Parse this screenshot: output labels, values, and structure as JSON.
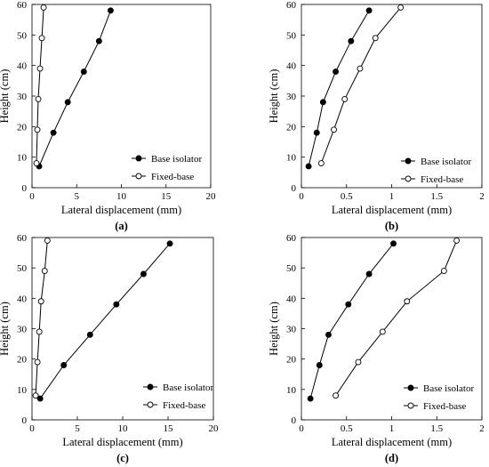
{
  "figure": {
    "panels": [
      "(a)",
      "(b)",
      "(c)",
      "(d)"
    ]
  },
  "colors": {
    "axis": "#000000",
    "series_filled": "#000000",
    "series_open_fill": "#ffffff"
  },
  "chart_data": [
    {
      "type": "line",
      "panel_label": "(a)",
      "xlabel": "Lateral displacement (mm)",
      "ylabel": "Height (cm)",
      "xlim": [
        0,
        20
      ],
      "ylim": [
        0,
        60
      ],
      "xticks": [
        "0",
        "5",
        "10",
        "15",
        "20"
      ],
      "yticks": [
        "0",
        "10",
        "20",
        "30",
        "40",
        "50",
        "60"
      ],
      "grid": false,
      "legend_position": "bottom-right",
      "series": [
        {
          "name": "Base isolator",
          "marker": "filled-circle",
          "x": [
            0.8,
            2.4,
            4.0,
            5.8,
            7.5,
            8.8
          ],
          "y": [
            7,
            18,
            28,
            38,
            48,
            58
          ]
        },
        {
          "name": "Fixed-base",
          "marker": "open-circle",
          "x": [
            0.5,
            0.6,
            0.7,
            0.9,
            1.1,
            1.3
          ],
          "y": [
            8,
            19,
            29,
            39,
            49,
            59
          ]
        }
      ]
    },
    {
      "type": "line",
      "panel_label": "(b)",
      "xlabel": "Lateral displacement (mm)",
      "ylabel": "Height (cm)",
      "xlim": [
        0,
        2
      ],
      "ylim": [
        0,
        60
      ],
      "xticks": [
        "0",
        "0.5",
        "1",
        "1.5",
        "2"
      ],
      "yticks": [
        "0",
        "10",
        "20",
        "30",
        "40",
        "50",
        "60"
      ],
      "grid": false,
      "legend_position": "bottom-right",
      "series": [
        {
          "name": "Base isolator",
          "marker": "filled-circle",
          "x": [
            0.08,
            0.17,
            0.24,
            0.38,
            0.55,
            0.75
          ],
          "y": [
            7,
            18,
            28,
            38,
            48,
            58
          ]
        },
        {
          "name": "Fixed-base",
          "marker": "open-circle",
          "x": [
            0.22,
            0.36,
            0.48,
            0.65,
            0.82,
            1.1
          ],
          "y": [
            8,
            19,
            29,
            39,
            49,
            59
          ]
        }
      ]
    },
    {
      "type": "line",
      "panel_label": "(c)",
      "xlabel": "Lateral displacement (mm)",
      "ylabel": "Height (cm)",
      "xlim": [
        0,
        20
      ],
      "ylim": [
        0,
        60
      ],
      "xticks": [
        "0",
        "5",
        "10",
        "15",
        "20"
      ],
      "yticks": [
        "0",
        "10",
        "20",
        "30",
        "40",
        "50",
        "60"
      ],
      "grid": false,
      "legend_position": "bottom-right",
      "series": [
        {
          "name": "Base isolator",
          "marker": "filled-circle",
          "x": [
            0.9,
            3.5,
            6.4,
            9.3,
            12.3,
            15.2
          ],
          "y": [
            7,
            18,
            28,
            38,
            48,
            58
          ]
        },
        {
          "name": "Fixed-base",
          "marker": "open-circle",
          "x": [
            0.4,
            0.6,
            0.8,
            1.0,
            1.4,
            1.7
          ],
          "y": [
            8,
            19,
            29,
            39,
            49,
            59
          ]
        }
      ]
    },
    {
      "type": "line",
      "panel_label": "(d)",
      "xlabel": "Lateral displacement (mm)",
      "ylabel": "Height (cm)",
      "xlim": [
        0,
        2
      ],
      "ylim": [
        0,
        60
      ],
      "xticks": [
        "0",
        "0.5",
        "1",
        "1.5",
        "2"
      ],
      "yticks": [
        "0",
        "10",
        "20",
        "30",
        "40",
        "50",
        "60"
      ],
      "grid": false,
      "legend_position": "bottom-right",
      "series": [
        {
          "name": "Base isolator",
          "marker": "filled-circle",
          "x": [
            0.1,
            0.2,
            0.3,
            0.52,
            0.75,
            1.02
          ],
          "y": [
            7,
            18,
            28,
            38,
            48,
            58
          ]
        },
        {
          "name": "Fixed-base",
          "marker": "open-circle",
          "x": [
            0.38,
            0.63,
            0.9,
            1.17,
            1.58,
            1.72
          ],
          "y": [
            8,
            19,
            29,
            39,
            49,
            59
          ]
        }
      ]
    }
  ]
}
